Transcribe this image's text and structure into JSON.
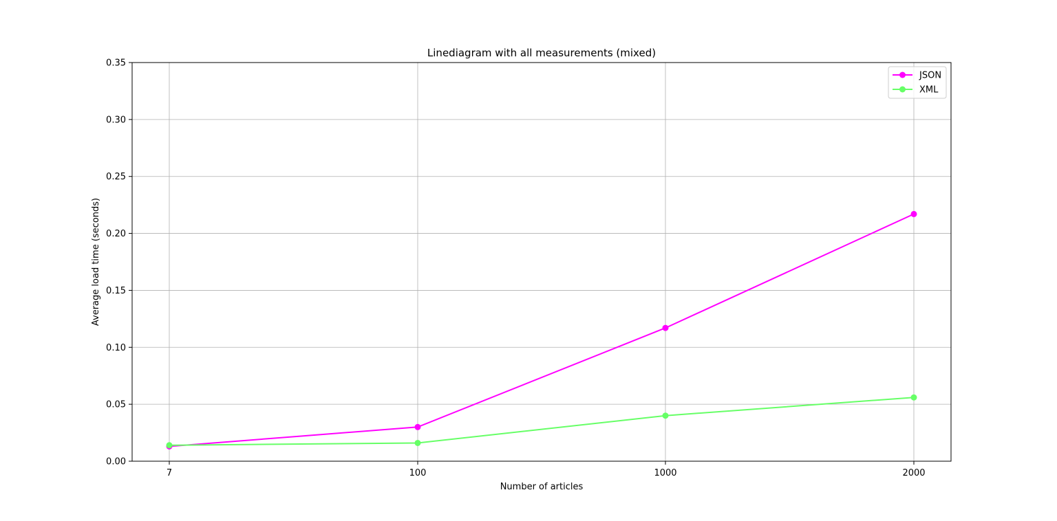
{
  "chart_data": {
    "type": "line",
    "title": "Linediagram with all measurements (mixed)",
    "xlabel": "Number of articles",
    "ylabel": "Average load time (seconds)",
    "categories": [
      "7",
      "100",
      "1000",
      "2000"
    ],
    "ylim": [
      0,
      0.35
    ],
    "yticks": [
      "0.00",
      "0.05",
      "0.10",
      "0.15",
      "0.20",
      "0.25",
      "0.30",
      "0.35"
    ],
    "grid": true,
    "legend_position": "top-right",
    "series": [
      {
        "name": "JSON",
        "color": "#ff00ff",
        "marker": "circle",
        "values": [
          0.013,
          0.03,
          0.117,
          0.217
        ]
      },
      {
        "name": "XML",
        "color": "#66ff66",
        "marker": "circle",
        "values": [
          0.014,
          0.016,
          0.04,
          0.056
        ]
      }
    ]
  }
}
